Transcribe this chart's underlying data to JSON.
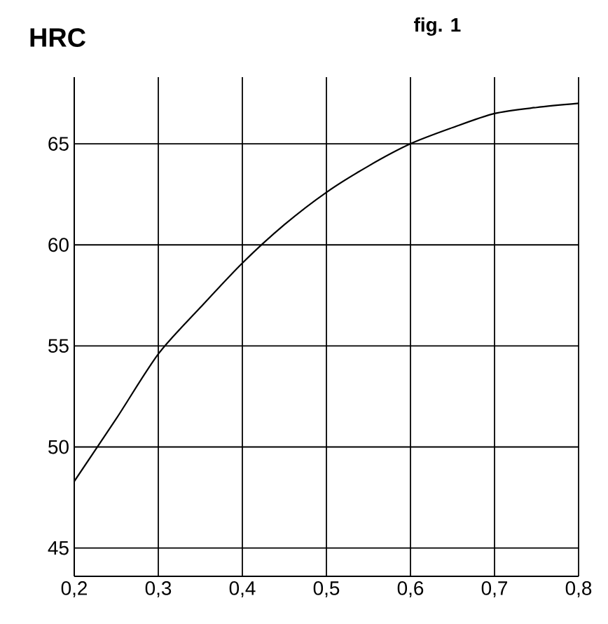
{
  "chart_data": {
    "type": "line",
    "title": "fig. 1",
    "ylabel": "HRC",
    "x": [
      0.2,
      0.25,
      0.3,
      0.35,
      0.4,
      0.45,
      0.5,
      0.55,
      0.6,
      0.65,
      0.7,
      0.75,
      0.8
    ],
    "series": [
      {
        "color": "#000000",
        "values": [
          48.3,
          51.4,
          54.6,
          56.9,
          59.1,
          61.0,
          62.6,
          63.9,
          65.0,
          65.8,
          66.5,
          66.8,
          67.0
        ]
      }
    ],
    "xlim": [
      0.2,
      0.8
    ],
    "ylim": [
      43.6,
      68.3
    ],
    "xticks": [
      {
        "value": 0.2,
        "label": "0,2"
      },
      {
        "value": 0.3,
        "label": "0,3"
      },
      {
        "value": 0.4,
        "label": "0,4"
      },
      {
        "value": 0.5,
        "label": "0,5"
      },
      {
        "value": 0.6,
        "label": "0,6"
      },
      {
        "value": 0.7,
        "label": "0,7"
      },
      {
        "value": 0.8,
        "label": "0,8"
      }
    ],
    "yticks": [
      45,
      50,
      55,
      60,
      65
    ],
    "grid": true,
    "marker": "none",
    "line_style": "solid"
  }
}
